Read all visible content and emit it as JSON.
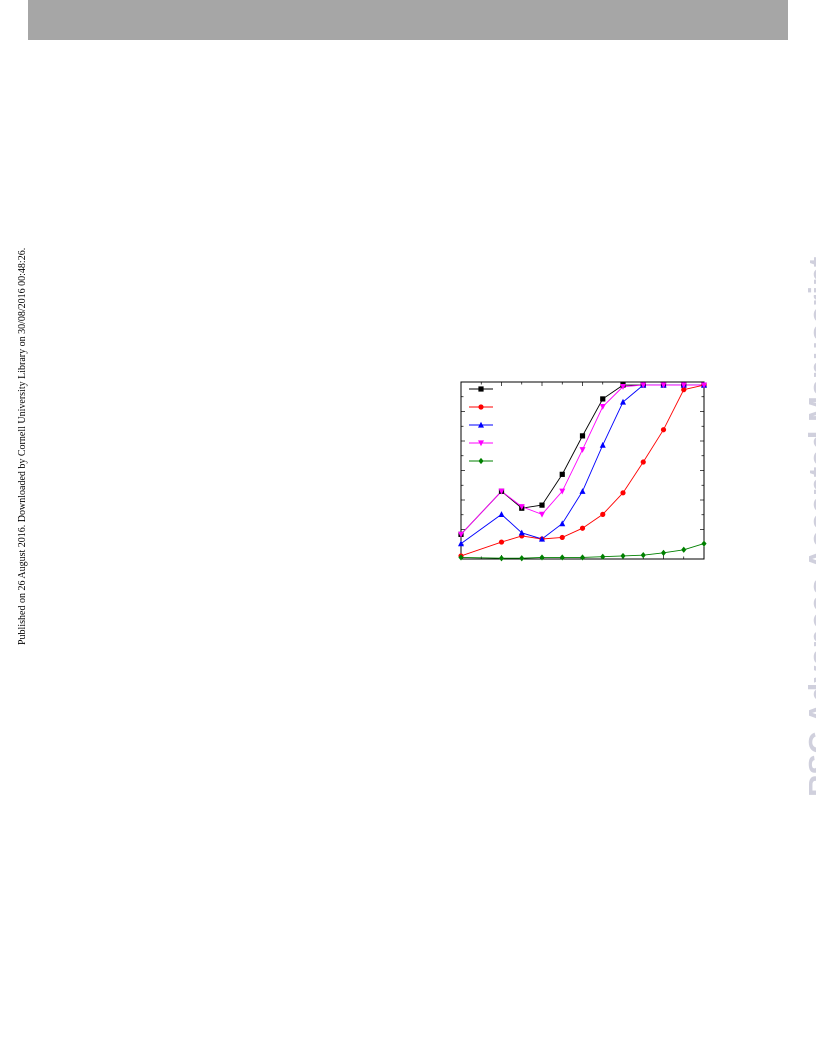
{
  "header": {
    "bar_color": "#a6a6a6"
  },
  "side_note": "Published on 26 August 2016. Downloaded by Cornell University Library on 30/08/2016 00:48:26.",
  "watermark": {
    "text": "RSC Advances Accepted Manuscript",
    "color": "#d0d0dd"
  },
  "chart_data": {
    "type": "line",
    "title": "",
    "xlabel": "",
    "ylabel": "",
    "x": [
      0,
      1,
      2,
      3,
      4,
      5,
      6,
      7,
      8,
      9,
      10,
      11,
      12
    ],
    "xlim": [
      0,
      12
    ],
    "ylim": [
      0,
      1.15
    ],
    "grid": false,
    "legend": "top-left",
    "series": [
      {
        "marker": "square",
        "color": "#000000",
        "values": [
          0.16,
          null,
          0.44,
          0.33,
          0.35,
          0.55,
          0.8,
          1.04,
          1.13,
          1.13,
          1.13,
          1.13,
          1.13
        ]
      },
      {
        "marker": "circle",
        "color": "#ff0000",
        "values": [
          0.02,
          null,
          0.11,
          0.15,
          0.13,
          0.14,
          0.2,
          0.29,
          0.43,
          0.63,
          0.84,
          1.1,
          1.13
        ]
      },
      {
        "marker": "triangle-up",
        "color": "#0000ff",
        "values": [
          0.1,
          null,
          0.29,
          0.17,
          0.13,
          0.23,
          0.44,
          0.74,
          1.02,
          1.13,
          1.13,
          1.13,
          1.13
        ]
      },
      {
        "marker": "triangle-down",
        "color": "#ff00ff",
        "values": [
          0.16,
          null,
          0.44,
          0.34,
          0.29,
          0.44,
          0.71,
          0.99,
          1.12,
          1.13,
          1.13,
          1.13,
          1.13
        ]
      },
      {
        "marker": "diamond",
        "color": "#008000",
        "values": [
          0.01,
          null,
          0.005,
          0.005,
          0.01,
          0.01,
          0.01,
          0.015,
          0.02,
          0.025,
          0.04,
          0.06,
          0.1
        ]
      }
    ]
  }
}
